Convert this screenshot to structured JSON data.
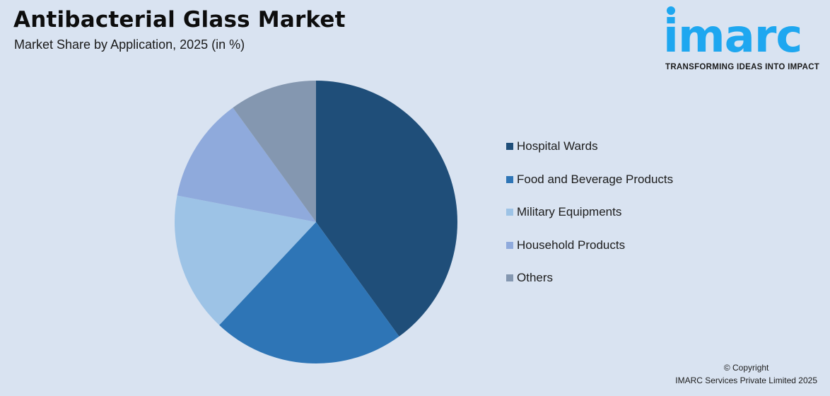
{
  "header": {
    "title": "Antibacterial Glass Market",
    "subtitle": "Market Share by Application, 2025 (in %)"
  },
  "logo": {
    "wordmark": "imarc",
    "tagline": "TRANSFORMING IDEAS INTO IMPACT",
    "color": "#1ea7f0"
  },
  "legend": {
    "items": [
      {
        "label": "Hospital Wards",
        "color": "#1f4e79"
      },
      {
        "label": "Food and Beverage Products",
        "color": "#2e75b6"
      },
      {
        "label": "Military Equipments",
        "color": "#9dc3e6"
      },
      {
        "label": "Household Products",
        "color": "#8faadc"
      },
      {
        "label": "Others",
        "color": "#8497b0"
      }
    ]
  },
  "footer": {
    "copyright_line1": "© Copyright",
    "copyright_line2": "IMARC Services Private Limited 2025"
  },
  "chart_data": {
    "type": "pie",
    "title": "Antibacterial Glass Market",
    "subtitle": "Market Share by Application, 2025 (in %)",
    "categories": [
      "Hospital Wards",
      "Food and Beverage Products",
      "Military Equipments",
      "Household Products",
      "Others"
    ],
    "values": [
      40,
      22,
      16,
      12,
      10
    ],
    "colors": [
      "#1f4e79",
      "#2e75b6",
      "#9dc3e6",
      "#8faadc",
      "#8497b0"
    ],
    "start_angle": "12 o'clock",
    "direction": "clockwise",
    "legend_position": "right",
    "data_labels": false
  }
}
